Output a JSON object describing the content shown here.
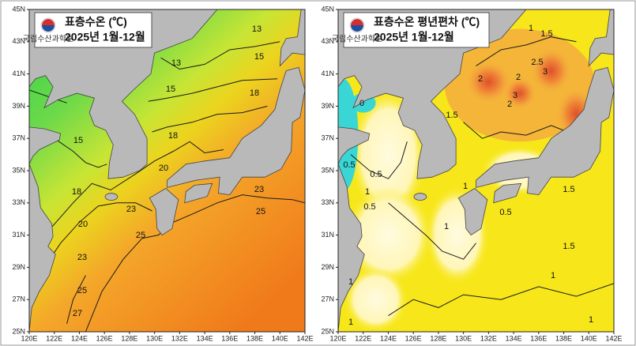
{
  "panels": [
    {
      "title": "표층수온 (℃)",
      "period": "2025년 1월-12월",
      "logo_text": "국립수산과학원",
      "lat_labels": [
        "45N",
        "43N",
        "41N",
        "39N",
        "37N",
        "35N",
        "33N",
        "31N",
        "29N",
        "27N",
        "25N"
      ],
      "lon_labels": [
        "120E",
        "122E",
        "124E",
        "126E",
        "128E",
        "130E",
        "132E",
        "134E",
        "136E",
        "138E",
        "140E",
        "142E"
      ],
      "contour_labels": [
        "13",
        "15",
        "13",
        "15",
        "18",
        "15",
        "18",
        "20",
        "18",
        "23",
        "23",
        "25",
        "20",
        "25",
        "23",
        "25",
        "27"
      ]
    },
    {
      "title": "표층수온 평년편차 (℃)",
      "period": "2025년 1월-12월",
      "logo_text": "국립수산과학원",
      "lat_labels": [
        "45N",
        "43N",
        "41N",
        "39N",
        "37N",
        "35N",
        "33N",
        "31N",
        "29N",
        "27N",
        "25N"
      ],
      "lon_labels": [
        "120E",
        "122E",
        "124E",
        "126E",
        "128E",
        "130E",
        "132E",
        "134E",
        "136E",
        "138E",
        "140E",
        "142E"
      ],
      "contour_labels": [
        "1.5",
        "1",
        "2.5",
        "3",
        "2",
        "2",
        "3",
        "2",
        "1.5",
        "0",
        "0.5",
        "0.5",
        "1",
        "0.5",
        "1",
        "1.5",
        "0.5",
        "1",
        "1.5",
        "1",
        "1",
        "1",
        "1"
      ]
    }
  ]
}
